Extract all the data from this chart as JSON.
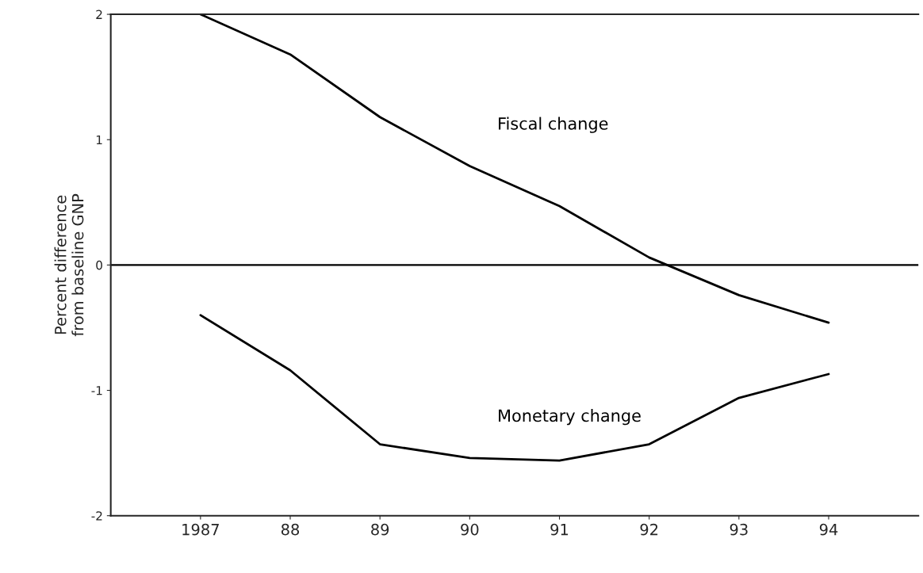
{
  "chart_data": {
    "type": "line",
    "ylabel": "Percent difference\nfrom baseline GNP",
    "x": [
      1987,
      1988,
      1989,
      1990,
      1991,
      1992,
      1993,
      1994
    ],
    "series": [
      {
        "name": "Fiscal change",
        "color": "#000000",
        "values": [
          2.0,
          1.68,
          1.18,
          0.79,
          0.47,
          0.06,
          -0.24,
          -0.46
        ]
      },
      {
        "name": "Monetary change",
        "color": "#000000",
        "values": [
          -0.4,
          -0.84,
          -1.43,
          -1.54,
          -1.56,
          -1.43,
          -1.06,
          -0.87
        ]
      }
    ],
    "xlim": [
      1986,
      1995
    ],
    "ylim": [
      -2,
      2
    ],
    "xticks": [
      1987,
      {
        "value": 1988,
        "label": "88"
      },
      {
        "value": 1989,
        "label": "89"
      },
      {
        "value": 1990,
        "label": "90"
      },
      {
        "value": 1991,
        "label": "91"
      },
      {
        "value": 1992,
        "label": "92"
      },
      {
        "value": 1993,
        "label": "93"
      },
      {
        "value": 1994,
        "label": "94"
      }
    ],
    "yticks": [
      2,
      1,
      0,
      -1,
      -2
    ],
    "ref_lines": [
      {
        "axis": "y",
        "value": 0,
        "label": null
      }
    ],
    "grid": false,
    "legend": false,
    "marker": "none",
    "line_style": "solid"
  }
}
